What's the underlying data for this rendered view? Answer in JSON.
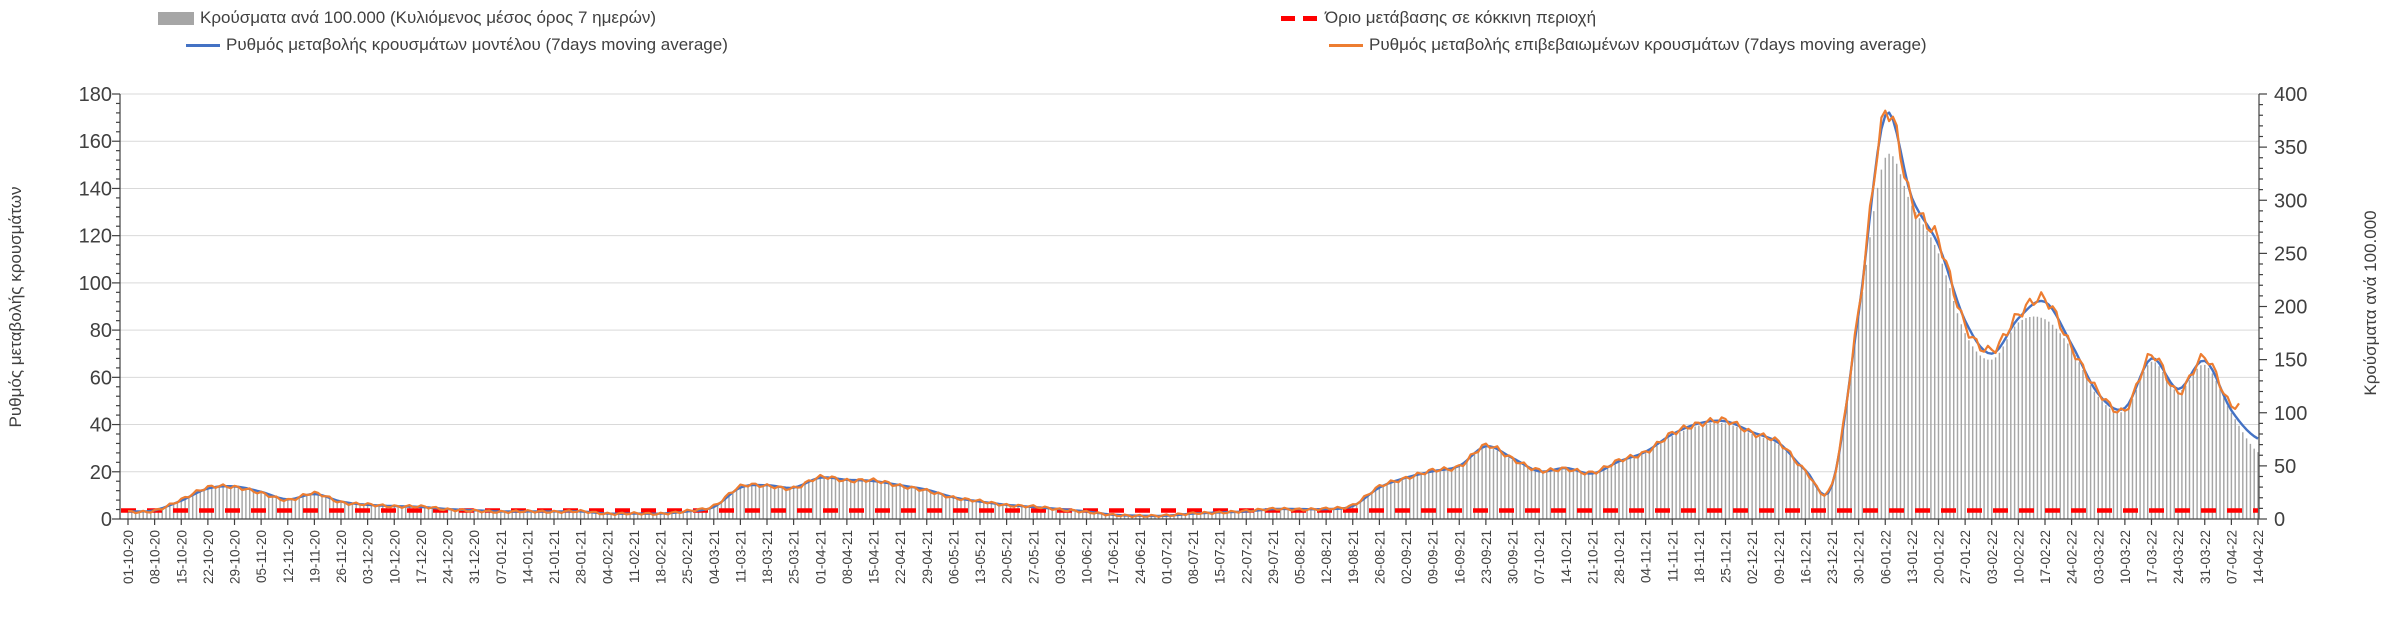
{
  "chart_data": {
    "type": "combo",
    "title": "",
    "x_labels": [
      "01-10-20",
      "08-10-20",
      "15-10-20",
      "22-10-20",
      "29-10-20",
      "05-11-20",
      "12-11-20",
      "19-11-20",
      "26-11-20",
      "03-12-20",
      "10-12-20",
      "17-12-20",
      "24-12-20",
      "31-12-20",
      "07-01-21",
      "14-01-21",
      "21-01-21",
      "28-01-21",
      "04-02-21",
      "11-02-21",
      "18-02-21",
      "25-02-21",
      "04-03-21",
      "11-03-21",
      "18-03-21",
      "25-03-21",
      "01-04-21",
      "08-04-21",
      "15-04-21",
      "22-04-21",
      "29-04-21",
      "06-05-21",
      "13-05-21",
      "20-05-21",
      "27-05-21",
      "03-06-21",
      "10-06-21",
      "17-06-21",
      "24-06-21",
      "01-07-21",
      "08-07-21",
      "15-07-21",
      "22-07-21",
      "29-07-21",
      "05-08-21",
      "12-08-21",
      "19-08-21",
      "26-08-21",
      "02-09-21",
      "09-09-21",
      "16-09-21",
      "23-09-21",
      "30-09-21",
      "07-10-21",
      "14-10-21",
      "21-10-21",
      "28-10-21",
      "04-11-21",
      "11-11-21",
      "18-11-21",
      "25-11-21",
      "02-12-21",
      "09-12-21",
      "16-12-21",
      "23-12-21",
      "30-12-21",
      "06-01-22",
      "13-01-22",
      "20-01-22",
      "27-01-22",
      "03-02-22",
      "10-02-22",
      "17-02-22",
      "24-02-22",
      "03-03-22",
      "10-03-22",
      "17-03-22",
      "24-03-22",
      "31-03-22",
      "07-04-22",
      "14-04-22"
    ],
    "series": [
      {
        "name": "Κρούσματα ανά 100.000 (Κυλιόμενος μέσος όρος 7 ημερών)",
        "type": "bar",
        "axis": "right",
        "color": "#A6A6A6",
        "values": [
          7,
          8,
          17,
          28,
          30,
          25,
          18,
          23,
          16,
          13,
          12,
          11,
          9,
          8,
          7,
          7,
          7,
          7,
          5,
          5,
          5,
          7,
          11,
          29,
          31,
          29,
          38,
          36,
          35,
          31,
          27,
          20,
          16,
          13,
          11,
          9,
          7,
          4,
          3,
          3,
          5,
          6,
          7,
          9,
          9,
          9,
          12,
          29,
          38,
          44,
          49,
          67,
          56,
          44,
          47,
          42,
          53,
          62,
          78,
          88,
          90,
          80,
          70,
          45,
          31,
          190,
          340,
          295,
          250,
          175,
          150,
          185,
          188,
          160,
          115,
          102,
          148,
          120,
          145,
          100,
          63
        ]
      },
      {
        "name": "Ρυθμός μεταβολής κρουσμάτων μοντέλου (7days moving average)",
        "type": "line",
        "axis": "left",
        "color": "#4472C4",
        "values": [
          3.2,
          3.7,
          7.8,
          12.9,
          13.8,
          11.5,
          8.3,
          10.6,
          7.4,
          6,
          5.5,
          5.1,
          4.2,
          3.7,
          3.2,
          3.2,
          3.2,
          3.2,
          2.3,
          2.3,
          2.3,
          3.2,
          5.1,
          13.3,
          14.3,
          13.3,
          17.5,
          16.6,
          16.1,
          14.3,
          12.4,
          9.2,
          7.4,
          6,
          5.1,
          4.2,
          3.2,
          1.8,
          1.4,
          1.4,
          2.3,
          2.8,
          3.2,
          4.2,
          4.2,
          4.2,
          5.5,
          13.3,
          17.5,
          20.2,
          22.5,
          30.8,
          25.8,
          20.2,
          21.6,
          19.3,
          24.4,
          28.5,
          35.9,
          40.5,
          41.4,
          36.8,
          32.2,
          20.7,
          14.3,
          87,
          171,
          136,
          116,
          84,
          70,
          85,
          92,
          74,
          53,
          47,
          68,
          55,
          67,
          46,
          34
        ]
      },
      {
        "name": "Ρυθμός μεταβολής επιβεβαιωμένων κρουσμάτων (7days moving average)",
        "type": "line",
        "axis": "left",
        "color": "#ED7D31",
        "values": [
          3,
          3.5,
          8.2,
          13.4,
          13.5,
          11,
          8,
          11,
          7,
          6.2,
          5.3,
          5.3,
          4,
          3.5,
          3,
          3.3,
          3,
          3.3,
          2.2,
          2.4,
          2.2,
          3.4,
          5.5,
          13.8,
          14,
          13,
          17.8,
          16.2,
          16.4,
          14,
          12,
          9,
          7.6,
          5.8,
          5.3,
          4,
          3,
          1.7,
          1.3,
          1.5,
          2.4,
          2.7,
          3.4,
          4.3,
          4,
          4.4,
          5.8,
          13.8,
          17.2,
          20.6,
          22.2,
          31.2,
          25.4,
          20.6,
          21.2,
          19.6,
          24.8,
          28.2,
          36.3,
          40.2,
          41.8,
          36.4,
          32.6,
          20.3,
          14.6,
          88,
          172,
          134,
          118,
          82,
          71.5,
          86.5,
          93,
          72.5,
          54,
          46,
          69.5,
          53.5,
          68.5,
          48,
          null
        ]
      },
      {
        "name": "Όριο μετάβασης σε κόκκινη περιοχή",
        "type": "threshold-line",
        "axis": "right",
        "color": "#FF0000",
        "value": 8
      }
    ],
    "axes": {
      "left": {
        "title": "Ρυθμός μεταβολής κρουσμάτων",
        "min": 0,
        "max": 180,
        "tick_step": 20,
        "minor_step": 4,
        "ticks": [
          0,
          20,
          40,
          60,
          80,
          100,
          120,
          140,
          160,
          180
        ]
      },
      "right": {
        "title": "Κρούσματα ανά 100.000",
        "min": 0,
        "max": 400,
        "tick_step": 50,
        "minor_step": 10,
        "ticks": [
          0,
          50,
          100,
          150,
          200,
          250,
          300,
          350,
          400
        ]
      },
      "x": {
        "tick_every_days": 7,
        "label_rotation_deg": -90
      }
    },
    "grid": {
      "horizontal": true,
      "vertical": false,
      "color": "#D9D9D9"
    },
    "legend_position": "top",
    "colors": {
      "axis_line": "#404040",
      "text": "#404040",
      "background": "#FFFFFF"
    }
  }
}
